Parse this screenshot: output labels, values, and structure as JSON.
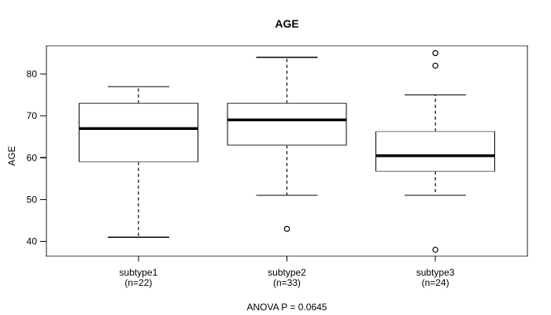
{
  "chart_data": {
    "type": "box",
    "title": "AGE",
    "ylabel": "AGE",
    "xlabel": "",
    "annotation": "ANOVA P = 0.0645",
    "y_ticks": [
      40,
      50,
      60,
      70,
      80
    ],
    "ylim": [
      36.5,
      86.8
    ],
    "grid": false,
    "legend": null,
    "groups": [
      {
        "label": "subtype1",
        "sublabel": "(n=22)",
        "n": 22,
        "whisker_low": 41,
        "q1": 59,
        "median": 67,
        "q3": 73,
        "whisker_high": 77,
        "outliers": []
      },
      {
        "label": "subtype2",
        "sublabel": "(n=33)",
        "n": 33,
        "whisker_low": 51,
        "q1": 63,
        "median": 69,
        "q3": 73,
        "whisker_high": 84,
        "outliers": [
          43
        ]
      },
      {
        "label": "subtype3",
        "sublabel": "(n=24)",
        "n": 24,
        "whisker_low": 51,
        "q1": 56.75,
        "median": 60.5,
        "q3": 66.25,
        "whisker_high": 75,
        "outliers": [
          85,
          82,
          38
        ]
      }
    ],
    "colors": {
      "line": "#000000",
      "frame_horizontal": "#848484",
      "frame_vertical": "#1f1f1f",
      "box_horizontal": "#6e6e6e",
      "box_fill": "#ffffff",
      "background": "#ffffff"
    }
  }
}
